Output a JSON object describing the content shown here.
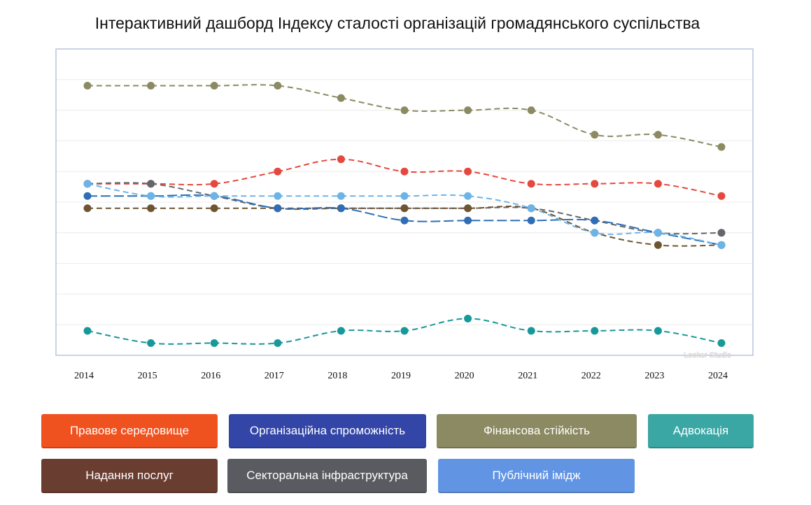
{
  "title": "Інтерактивний дашборд Індексу сталості організацій громадянського суспільства",
  "watermark": "Looker Studio",
  "chart_data": {
    "type": "line",
    "x": [
      "2014",
      "2015",
      "2016",
      "2017",
      "2018",
      "2019",
      "2020",
      "2021",
      "2022",
      "2023",
      "2024"
    ],
    "ylim": [
      2.0,
      7.0
    ],
    "grid": true,
    "y_tick_labels_shown": false,
    "series": [
      {
        "name": "Фінансова стійкість",
        "color": "#8b8a62",
        "dash": "8,5",
        "values": [
          6.4,
          6.4,
          6.4,
          6.4,
          6.2,
          6.0,
          6.0,
          6.0,
          5.6,
          5.6,
          5.4
        ]
      },
      {
        "name": "Правове середовище",
        "color": "#e5483e",
        "dash": "8,5",
        "values": [
          4.8,
          4.8,
          4.8,
          5.0,
          5.2,
          5.0,
          5.0,
          4.8,
          4.8,
          4.8,
          4.6
        ]
      },
      {
        "name": "Секторальна інфраструктура",
        "color": "#63666a",
        "dash": "8,5",
        "values": [
          4.8,
          4.8,
          4.6,
          4.4,
          4.4,
          4.4,
          4.4,
          4.4,
          4.2,
          4.0,
          4.0
        ]
      },
      {
        "name": "Надання послуг",
        "color": "#6e5532",
        "dash": "8,5",
        "values": [
          4.4,
          4.4,
          4.4,
          4.4,
          4.4,
          4.4,
          4.4,
          4.4,
          4.0,
          3.8,
          3.8
        ]
      },
      {
        "name": "Організаційна спроможність",
        "color": "#2f6eb5",
        "dash": "14,5",
        "values": [
          4.6,
          4.6,
          4.6,
          4.4,
          4.4,
          4.2,
          4.2,
          4.2,
          4.2,
          4.0,
          3.8
        ]
      },
      {
        "name": "Публічний імідж",
        "color": "#6cb4e8",
        "dash": "8,5",
        "values": [
          4.8,
          4.6,
          4.6,
          4.6,
          4.6,
          4.6,
          4.6,
          4.4,
          4.0,
          4.0,
          3.8
        ]
      },
      {
        "name": "Адвокація",
        "color": "#17989a",
        "dash": "8,5",
        "values": [
          2.4,
          2.2,
          2.2,
          2.2,
          2.4,
          2.4,
          2.6,
          2.4,
          2.4,
          2.4,
          2.2
        ]
      }
    ]
  },
  "legend": [
    {
      "label": "Правове середовище",
      "color": "#f0521f"
    },
    {
      "label": "Організаційна спроможність",
      "color": "#3346a7"
    },
    {
      "label": "Фінансова стійкість",
      "color": "#8b8a62"
    },
    {
      "label": "Адвокація",
      "color": "#3aa7a5"
    },
    {
      "label": "Надання послуг",
      "color": "#6a3d31"
    },
    {
      "label": "Секторальна інфраструктура",
      "color": "#5a5b60"
    },
    {
      "label": "Публічний імідж",
      "color": "#6294e4"
    }
  ]
}
